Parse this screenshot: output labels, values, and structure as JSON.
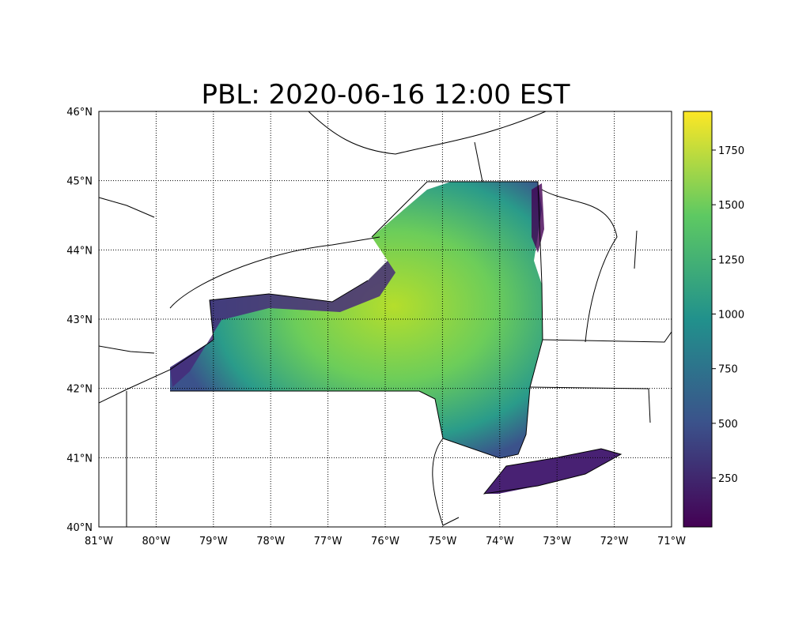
{
  "title": "PBL: 2020-06-16 12:00 EST",
  "map": {
    "lon_range": [
      -81,
      -71
    ],
    "lat_range": [
      40,
      46
    ],
    "lon_ticks": [
      "81°W",
      "80°W",
      "79°W",
      "78°W",
      "77°W",
      "76°W",
      "75°W",
      "74°W",
      "73°W",
      "72°W",
      "71°W"
    ],
    "lat_ticks": [
      "40°N",
      "41°N",
      "42°N",
      "43°N",
      "44°N",
      "45°N",
      "46°N"
    ],
    "gridlines": "dotted",
    "colormap": "viridis",
    "region": "New York State"
  },
  "colorbar": {
    "range": [
      26,
      1927
    ],
    "ticks": [
      "250",
      "500",
      "750",
      "1000",
      "1250",
      "1500",
      "1750"
    ],
    "tick_values": [
      250,
      500,
      750,
      1000,
      1250,
      1500,
      1750
    ],
    "colors": [
      "#440154",
      "#3b528b",
      "#21918c",
      "#5ec962",
      "#fde725"
    ]
  }
}
